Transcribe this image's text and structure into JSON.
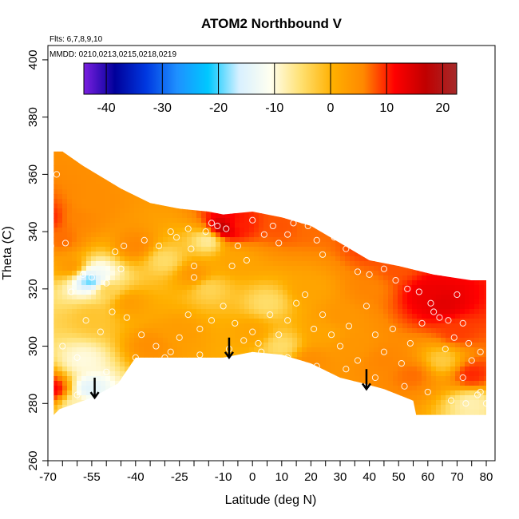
{
  "chart_data": {
    "type": "heatmap",
    "title": "ATOM2 Northbound V",
    "flights_note": "Flts: 6,7,8,9,10",
    "dates_note": "MMDD: 0210,0213,0215,0218,0219",
    "xlabel": "Latitude (deg N)",
    "ylabel": "Theta (C)",
    "xlim": [
      -70,
      83
    ],
    "ylim": [
      260,
      405
    ],
    "x_ticks": [
      -70,
      -55,
      -40,
      -25,
      -10,
      0,
      10,
      20,
      30,
      40,
      50,
      60,
      70,
      80
    ],
    "x_tick_labels": [
      "-70",
      "-55",
      "-40",
      "-25",
      "-10",
      "0",
      "10",
      "20",
      "30",
      "40",
      "50",
      "60",
      "70",
      "80"
    ],
    "x_minor_step": 5,
    "y_ticks": [
      260,
      280,
      300,
      320,
      340,
      360,
      380,
      400
    ],
    "y_tick_labels": [
      "260",
      "280",
      "300",
      "320",
      "340",
      "360",
      "380",
      "400"
    ],
    "colorbar": {
      "range": [
        -44,
        22.5
      ],
      "ticks": [
        -40,
        -30,
        -20,
        -10,
        0,
        10,
        20
      ],
      "tick_labels": [
        "-40",
        "-30",
        "-20",
        "-10",
        "0",
        "10",
        "20"
      ],
      "colors": [
        "#7b1fe0",
        "#00009a",
        "#0038e0",
        "#1e90ff",
        "#00c8ff",
        "#d8f0ff",
        "#fffff0",
        "#ffe070",
        "#ffb000",
        "#ff8800",
        "#ff0000",
        "#c00000",
        "#a52a2a"
      ]
    },
    "data_boundary": [
      [
        -68,
        276
      ],
      [
        -66,
        278
      ],
      [
        -55,
        282
      ],
      [
        -46,
        287
      ],
      [
        -40,
        296
      ],
      [
        -10,
        296
      ],
      [
        0,
        298
      ],
      [
        10,
        297
      ],
      [
        20,
        294
      ],
      [
        30,
        289
      ],
      [
        38,
        287
      ],
      [
        45,
        285
      ],
      [
        55,
        281
      ],
      [
        56,
        276
      ],
      [
        80,
        276
      ],
      [
        80,
        323
      ],
      [
        75,
        323
      ],
      [
        62,
        325
      ],
      [
        50,
        328
      ],
      [
        40,
        330
      ],
      [
        30,
        336
      ],
      [
        20,
        342
      ],
      [
        10,
        345
      ],
      [
        5,
        346
      ],
      [
        0,
        347
      ],
      [
        -10,
        346
      ],
      [
        -15,
        347
      ],
      [
        -25,
        348
      ],
      [
        -35,
        350
      ],
      [
        -45,
        355
      ],
      [
        -58,
        363
      ],
      [
        -65,
        368
      ],
      [
        -68,
        368
      ]
    ],
    "field_features": [
      {
        "lat": -70,
        "theta": 345,
        "v": 10
      },
      {
        "lat": -65,
        "theta": 337,
        "v": 7
      },
      {
        "lat": -60,
        "theta": 345,
        "v": 6
      },
      {
        "lat": -55,
        "theta": 350,
        "v": 5
      },
      {
        "lat": -62,
        "theta": 328,
        "v": 4
      },
      {
        "lat": -55,
        "theta": 323,
        "v": -22
      },
      {
        "lat": -53,
        "theta": 325,
        "v": -12
      },
      {
        "lat": -50,
        "theta": 320,
        "v": -3
      },
      {
        "lat": -55,
        "theta": 310,
        "v": -2
      },
      {
        "lat": -58,
        "theta": 295,
        "v": -10
      },
      {
        "lat": -56,
        "theta": 285,
        "v": -15
      },
      {
        "lat": -68,
        "theta": 285,
        "v": 12
      },
      {
        "lat": -60,
        "theta": 280,
        "v": -8
      },
      {
        "lat": -40,
        "theta": 335,
        "v": 6
      },
      {
        "lat": -42,
        "theta": 315,
        "v": 3
      },
      {
        "lat": -30,
        "theta": 330,
        "v": -5
      },
      {
        "lat": -20,
        "theta": 325,
        "v": 4
      },
      {
        "lat": -15,
        "theta": 320,
        "v": -4
      },
      {
        "lat": -15,
        "theta": 337,
        "v": -8
      },
      {
        "lat": -5,
        "theta": 330,
        "v": 2
      },
      {
        "lat": -10,
        "theta": 341,
        "v": 18
      },
      {
        "lat": -5,
        "theta": 342,
        "v": 10
      },
      {
        "lat": 10,
        "theta": 342,
        "v": 8
      },
      {
        "lat": 20,
        "theta": 342,
        "v": 7
      },
      {
        "lat": 5,
        "theta": 315,
        "v": -5
      },
      {
        "lat": 10,
        "theta": 300,
        "v": -5
      },
      {
        "lat": 0,
        "theta": 305,
        "v": 2
      },
      {
        "lat": 20,
        "theta": 320,
        "v": 2
      },
      {
        "lat": 25,
        "theta": 305,
        "v": 2
      },
      {
        "lat": 30,
        "theta": 310,
        "v": 4
      },
      {
        "lat": 40,
        "theta": 320,
        "v": 6
      },
      {
        "lat": 40,
        "theta": 335,
        "v": 9
      },
      {
        "lat": 50,
        "theta": 328,
        "v": 8
      },
      {
        "lat": 60,
        "theta": 318,
        "v": 13
      },
      {
        "lat": 65,
        "theta": 315,
        "v": 14
      },
      {
        "lat": 70,
        "theta": 305,
        "v": 9
      },
      {
        "lat": 65,
        "theta": 295,
        "v": -3
      },
      {
        "lat": 75,
        "theta": 290,
        "v": 10
      },
      {
        "lat": 75,
        "theta": 280,
        "v": -8
      },
      {
        "lat": 55,
        "theta": 290,
        "v": 7
      },
      {
        "lat": 45,
        "theta": 295,
        "v": 6
      },
      {
        "lat": 35,
        "theta": 300,
        "v": 4
      },
      {
        "lat": 20,
        "theta": 295,
        "v": 5
      },
      {
        "lat": -25,
        "theta": 305,
        "v": 3
      },
      {
        "lat": -35,
        "theta": 300,
        "v": 5
      }
    ],
    "arrows": [
      {
        "lat": -54,
        "theta_top": 289,
        "theta_bottom": 282
      },
      {
        "lat": -8,
        "theta_top": 303,
        "theta_bottom": 296
      },
      {
        "lat": 39,
        "theta_top": 292,
        "theta_bottom": 285
      }
    ],
    "observations": [
      [
        -69,
        335
      ],
      [
        -64,
        336
      ],
      [
        -67,
        360
      ],
      [
        -62,
        319
      ],
      [
        -58,
        325
      ],
      [
        -55,
        324
      ],
      [
        -50,
        322
      ],
      [
        -47,
        333
      ],
      [
        -44,
        335
      ],
      [
        -45,
        327
      ],
      [
        -37,
        337
      ],
      [
        -32,
        335
      ],
      [
        -28,
        340
      ],
      [
        -26,
        338
      ],
      [
        -22,
        341
      ],
      [
        -21,
        334
      ],
      [
        -20,
        328
      ],
      [
        -20,
        324
      ],
      [
        -16,
        340
      ],
      [
        -14,
        343
      ],
      [
        -12,
        342
      ],
      [
        -9,
        341
      ],
      [
        -7,
        328
      ],
      [
        -5,
        335
      ],
      [
        -2,
        330
      ],
      [
        0,
        344
      ],
      [
        4,
        339
      ],
      [
        7,
        342
      ],
      [
        9,
        336
      ],
      [
        12,
        339
      ],
      [
        14,
        343
      ],
      [
        17,
        344
      ],
      [
        19,
        342
      ],
      [
        22,
        337
      ],
      [
        24,
        332
      ],
      [
        28,
        338
      ],
      [
        32,
        334
      ],
      [
        36,
        326
      ],
      [
        40,
        325
      ],
      [
        45,
        327
      ],
      [
        49,
        323
      ],
      [
        53,
        320
      ],
      [
        57,
        319
      ],
      [
        61,
        315
      ],
      [
        64,
        310
      ],
      [
        67,
        309
      ],
      [
        70,
        318
      ],
      [
        72,
        308
      ],
      [
        74,
        301
      ],
      [
        78,
        298
      ],
      [
        -65,
        300
      ],
      [
        -60,
        296
      ],
      [
        -57,
        309
      ],
      [
        -52,
        305
      ],
      [
        -48,
        312
      ],
      [
        -43,
        310
      ],
      [
        -38,
        304
      ],
      [
        -33,
        300
      ],
      [
        -30,
        296
      ],
      [
        -25,
        303
      ],
      [
        -22,
        311
      ],
      [
        -18,
        306
      ],
      [
        -14,
        309
      ],
      [
        -10,
        314
      ],
      [
        -6,
        308
      ],
      [
        -3,
        302
      ],
      [
        0,
        305
      ],
      [
        3,
        298
      ],
      [
        6,
        311
      ],
      [
        9,
        304
      ],
      [
        12,
        309
      ],
      [
        15,
        315
      ],
      [
        18,
        318
      ],
      [
        21,
        306
      ],
      [
        24,
        311
      ],
      [
        27,
        304
      ],
      [
        30,
        300
      ],
      [
        33,
        307
      ],
      [
        36,
        295
      ],
      [
        39,
        314
      ],
      [
        42,
        304
      ],
      [
        45,
        298
      ],
      [
        48,
        306
      ],
      [
        51,
        294
      ],
      [
        54,
        301
      ],
      [
        58,
        308
      ],
      [
        62,
        312
      ],
      [
        66,
        299
      ],
      [
        69,
        303
      ],
      [
        72,
        289
      ],
      [
        75,
        295
      ],
      [
        78,
        284
      ],
      [
        -60,
        283
      ],
      [
        -50,
        291
      ],
      [
        -40,
        296
      ],
      [
        -28,
        298
      ],
      [
        -18,
        297
      ],
      [
        -8,
        299
      ],
      [
        2,
        301
      ],
      [
        12,
        296
      ],
      [
        22,
        293
      ],
      [
        32,
        292
      ],
      [
        42,
        289
      ],
      [
        52,
        286
      ],
      [
        60,
        284
      ],
      [
        68,
        281
      ],
      [
        73,
        280
      ],
      [
        77,
        283
      ],
      [
        80,
        280
      ]
    ]
  }
}
